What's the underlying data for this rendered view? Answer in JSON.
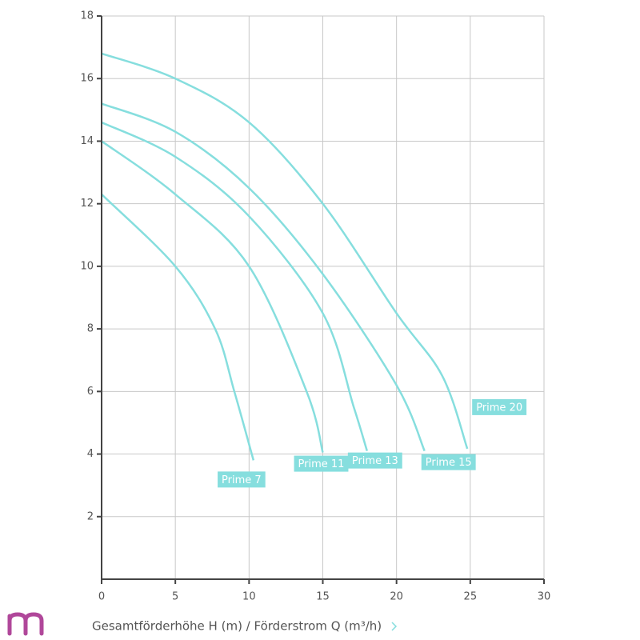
{
  "chart_data": {
    "type": "line",
    "x_label": "Gesamtförderhöhe H (m) / Förderstrom Q (m³/h)",
    "xlim": [
      0,
      30
    ],
    "xticks": [
      0,
      5,
      10,
      15,
      20,
      25,
      30
    ],
    "ylim": [
      0,
      18
    ],
    "yticks": [
      2,
      4,
      6,
      8,
      10,
      12,
      14,
      16,
      18
    ],
    "grid": true,
    "series": [
      {
        "name": "Prime 7",
        "color": "#86dede",
        "x": [
          0,
          5,
          7.7,
          9.0,
          10.3
        ],
        "values": [
          12.3,
          10,
          8,
          6,
          3.8
        ]
      },
      {
        "name": "Prime 11",
        "color": "#86dede",
        "x": [
          0,
          5,
          10,
          13.9,
          15
        ],
        "values": [
          14.0,
          12.3,
          10,
          6,
          4.05
        ]
      },
      {
        "name": "Prime 13",
        "color": "#86dede",
        "x": [
          0,
          5,
          10,
          15,
          17.1,
          18.0
        ],
        "values": [
          14.6,
          13.5,
          11.6,
          8.5,
          5.5,
          4.1
        ]
      },
      {
        "name": "Prime 15",
        "color": "#86dede",
        "x": [
          0,
          5,
          10,
          15,
          20,
          21.9
        ],
        "values": [
          15.2,
          14.3,
          12.5,
          9.75,
          6.2,
          4.1
        ]
      },
      {
        "name": "Prime 20",
        "color": "#86dede",
        "x": [
          0,
          5,
          10,
          15,
          20,
          23.1,
          24.8
        ],
        "values": [
          16.8,
          16,
          14.6,
          12,
          8.5,
          6.5,
          4.17
        ]
      }
    ]
  }
}
